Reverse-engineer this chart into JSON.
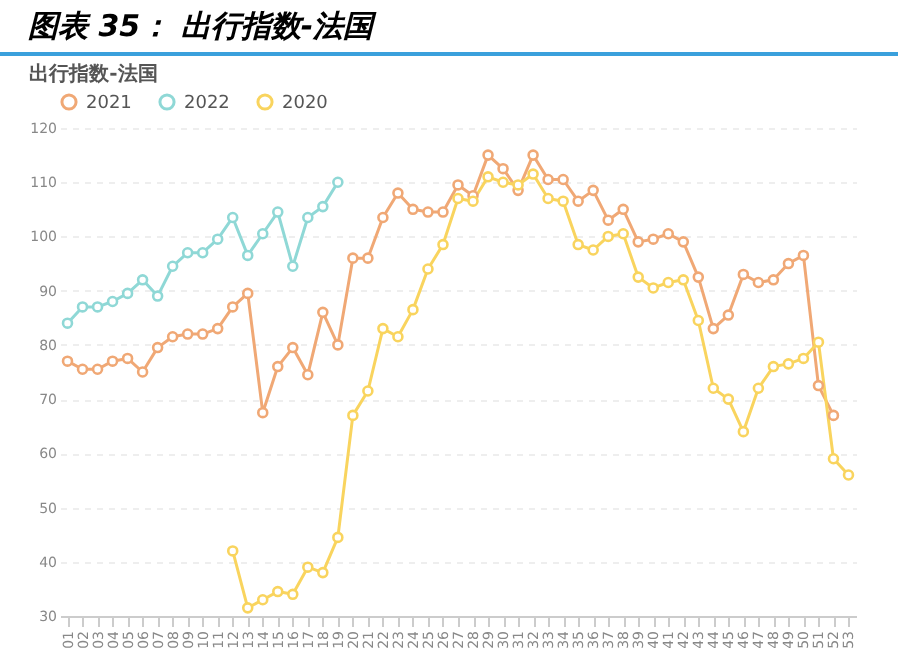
{
  "chart_data": {
    "type": "line",
    "title": "图表 35： 出行指数-法国",
    "subtitle": "出行指数-法国",
    "categories": [
      "01",
      "02",
      "03",
      "04",
      "05",
      "06",
      "07",
      "08",
      "09",
      "10",
      "11",
      "12",
      "13",
      "14",
      "15",
      "16",
      "17",
      "18",
      "19",
      "20",
      "21",
      "22",
      "23",
      "24",
      "25",
      "26",
      "27",
      "28",
      "29",
      "30",
      "31",
      "32",
      "33",
      "34",
      "35",
      "36",
      "37",
      "38",
      "39",
      "40",
      "41",
      "42",
      "43",
      "44",
      "45",
      "46",
      "47",
      "48",
      "49",
      "50",
      "51",
      "52",
      "53"
    ],
    "series": [
      {
        "name": "2021",
        "color": "#f0a875",
        "values": [
          77,
          75.5,
          75.5,
          77,
          77.5,
          75,
          79.5,
          81.5,
          82,
          82,
          83,
          87,
          89.5,
          67.5,
          76,
          79.5,
          74.5,
          86,
          80,
          96,
          96,
          103.5,
          108,
          105,
          104.5,
          104.5,
          109.5,
          107.5,
          115,
          112.5,
          108.5,
          115,
          110.5,
          110.5,
          106.5,
          108.5,
          103,
          105,
          99,
          99.5,
          100.5,
          99,
          92.5,
          83,
          85.5,
          93,
          91.5,
          92,
          95,
          96.5,
          72.5,
          67,
          null
        ]
      },
      {
        "name": "2022",
        "color": "#8fd8d6",
        "values": [
          84,
          87,
          87,
          88,
          89.5,
          92,
          89,
          94.5,
          97,
          97,
          99.5,
          103.5,
          96.5,
          100.5,
          104.5,
          94.5,
          103.5,
          105.5,
          110,
          null,
          null,
          null,
          null,
          null,
          null,
          null,
          null,
          null,
          null,
          null,
          null,
          null,
          null,
          null,
          null,
          null,
          null,
          null,
          null,
          null,
          null,
          null,
          null,
          null,
          null,
          null,
          null,
          null,
          null,
          null,
          null,
          null,
          null
        ]
      },
      {
        "name": "2020",
        "color": "#f9d45e",
        "values": [
          null,
          null,
          null,
          null,
          null,
          null,
          null,
          null,
          null,
          null,
          null,
          42,
          31.5,
          33,
          34.5,
          34,
          39,
          38,
          44.5,
          67,
          71.5,
          83,
          81.5,
          86.5,
          94,
          98.5,
          107,
          106.5,
          111,
          110,
          109.5,
          111.5,
          107,
          106.5,
          98.5,
          97.5,
          100,
          100.5,
          92.5,
          90.5,
          91.5,
          92,
          84.5,
          72,
          70,
          64,
          72,
          76,
          76.5,
          77.5,
          80.5,
          59,
          56
        ]
      }
    ],
    "ylim": [
      30,
      120
    ],
    "yticks": [
      30,
      40,
      50,
      60,
      70,
      80,
      90,
      100,
      110,
      120
    ],
    "grid": "y",
    "legend": "top left",
    "marker": "circle",
    "line_style": "solid"
  }
}
